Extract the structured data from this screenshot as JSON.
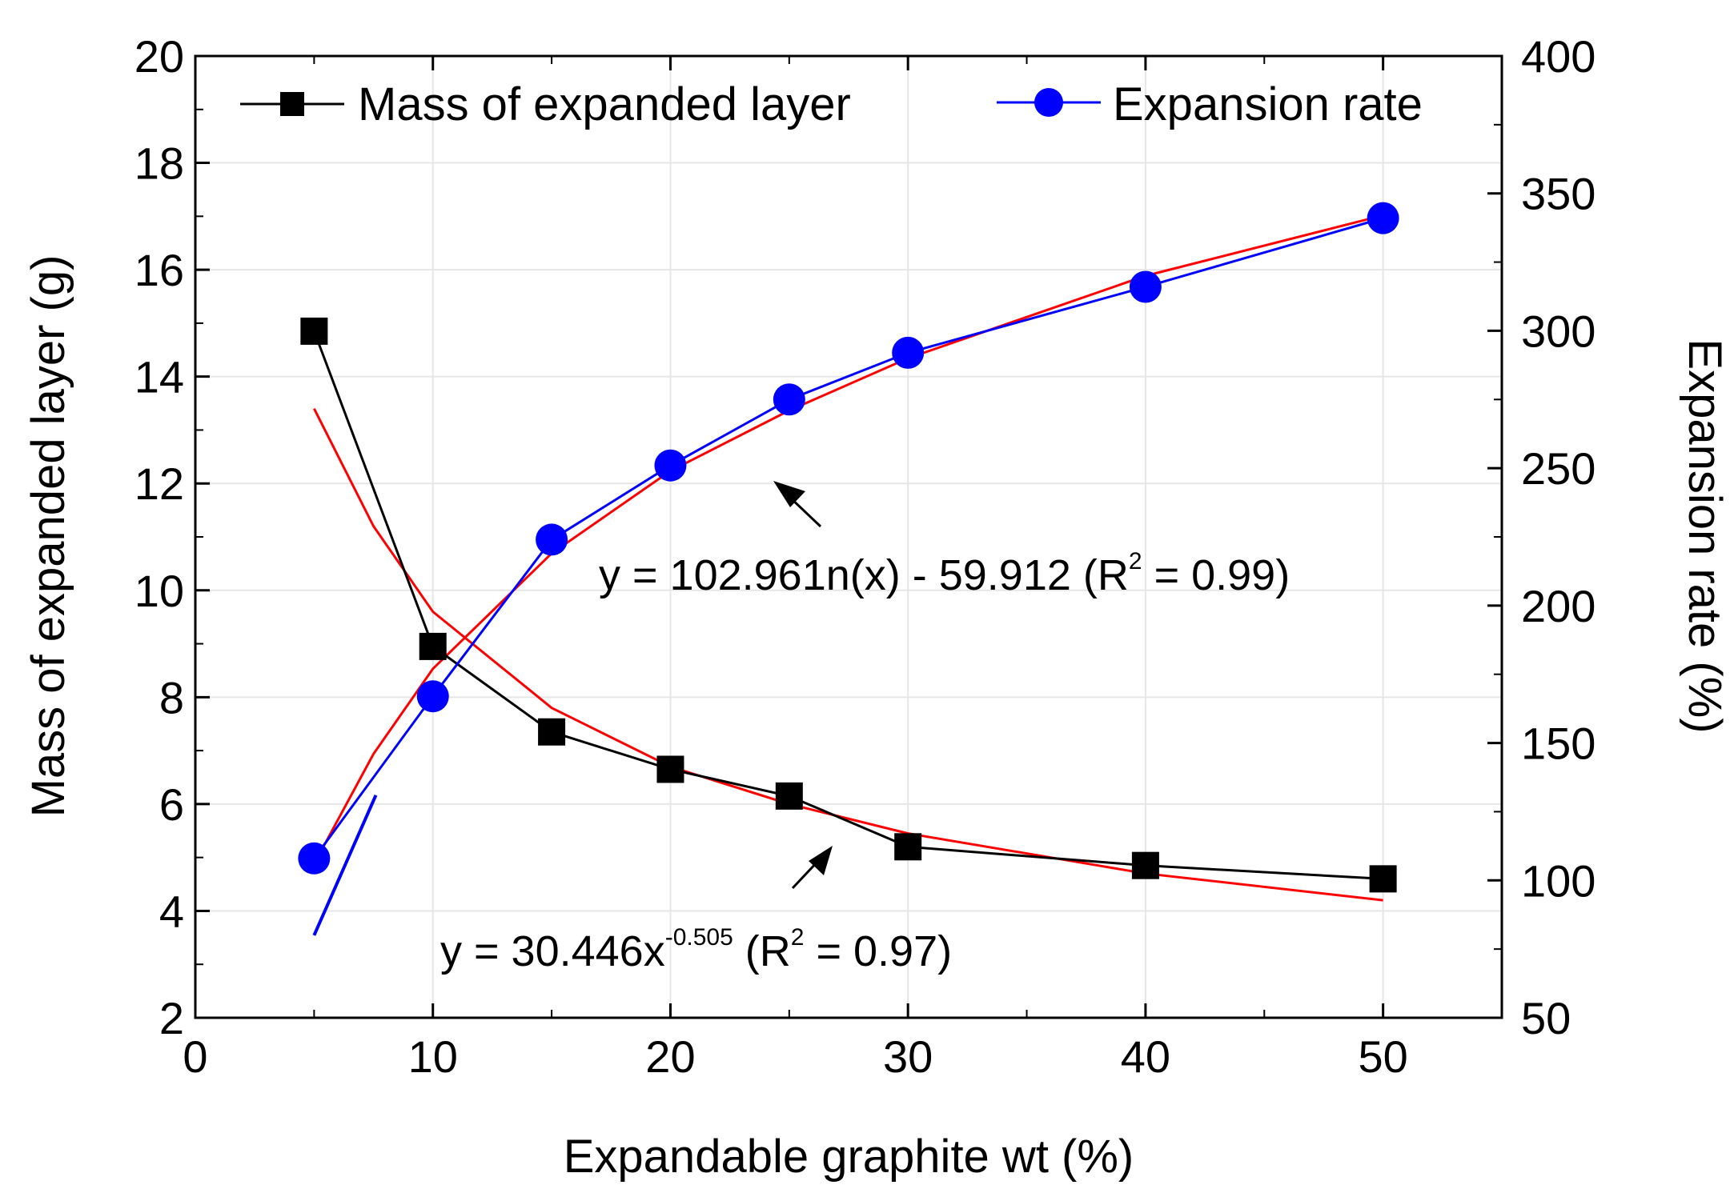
{
  "chart_data": {
    "type": "line",
    "x": [
      5,
      10,
      15,
      20,
      25,
      30,
      40,
      50
    ],
    "xlabel": "Expandable graphite wt (%)",
    "xlim": [
      0,
      55
    ],
    "xticks": [
      0,
      10,
      20,
      30,
      40,
      50
    ],
    "xtick_labels": [
      "0",
      "10",
      "20",
      "30",
      "40",
      "50"
    ],
    "ylabel_left": "Mass of expanded layer (g)",
    "ylim_left": [
      2,
      20
    ],
    "yticks_left": [
      2,
      4,
      6,
      8,
      10,
      12,
      14,
      16,
      18,
      20
    ],
    "ytick_labels_left": [
      "2",
      "4",
      "6",
      "8",
      "10",
      "12",
      "14",
      "16",
      "18",
      "20"
    ],
    "ylabel_right": "Expansion rate (%)",
    "ylim_right": [
      50,
      400
    ],
    "yticks_right": [
      50,
      100,
      150,
      200,
      250,
      300,
      350,
      400
    ],
    "ytick_labels_right": [
      "50",
      "100",
      "150",
      "200",
      "250",
      "300",
      "350",
      "400"
    ],
    "legend_position": "top",
    "series": [
      {
        "name": "Mass of expanded layer",
        "axis": "left",
        "marker": "square",
        "color": "#000000",
        "values": [
          14.85,
          8.95,
          7.35,
          6.65,
          6.15,
          5.2,
          4.85,
          4.6
        ]
      },
      {
        "name": "Expansion rate",
        "axis": "right",
        "marker": "circle",
        "color": "#0000ff",
        "values": [
          108,
          167,
          224,
          251,
          275,
          292,
          316,
          341
        ]
      }
    ],
    "fits": [
      {
        "name": "power-fit-mass",
        "axis": "left",
        "color": "#ff0000",
        "x": [
          5,
          7.5,
          10,
          15,
          20,
          25,
          30,
          40,
          50
        ],
        "values": [
          13.4,
          11.2,
          9.6,
          7.8,
          6.7,
          6.0,
          5.45,
          4.7,
          4.2
        ]
      },
      {
        "name": "log-fit-expansion",
        "axis": "right",
        "color": "#ff0000",
        "x": [
          5,
          7.5,
          10,
          15,
          20,
          25,
          30,
          40,
          50
        ],
        "values": [
          106,
          146,
          177,
          219,
          249,
          271,
          290,
          320,
          342
        ]
      }
    ],
    "extra_blue_segment": {
      "axis": "right",
      "x": [
        5,
        7.6
      ],
      "values": [
        80,
        131
      ]
    },
    "annotations": {
      "eq_log": {
        "main": "y = 102.961n(x) - 59.912 (R",
        "sup": "2",
        "tail": " = 0.99)"
      },
      "eq_power": {
        "main": "y = 30.446x",
        "sup": "-0.505",
        "tail1": " (R",
        "sup2": "2",
        "tail2": " = 0.97)"
      }
    }
  }
}
